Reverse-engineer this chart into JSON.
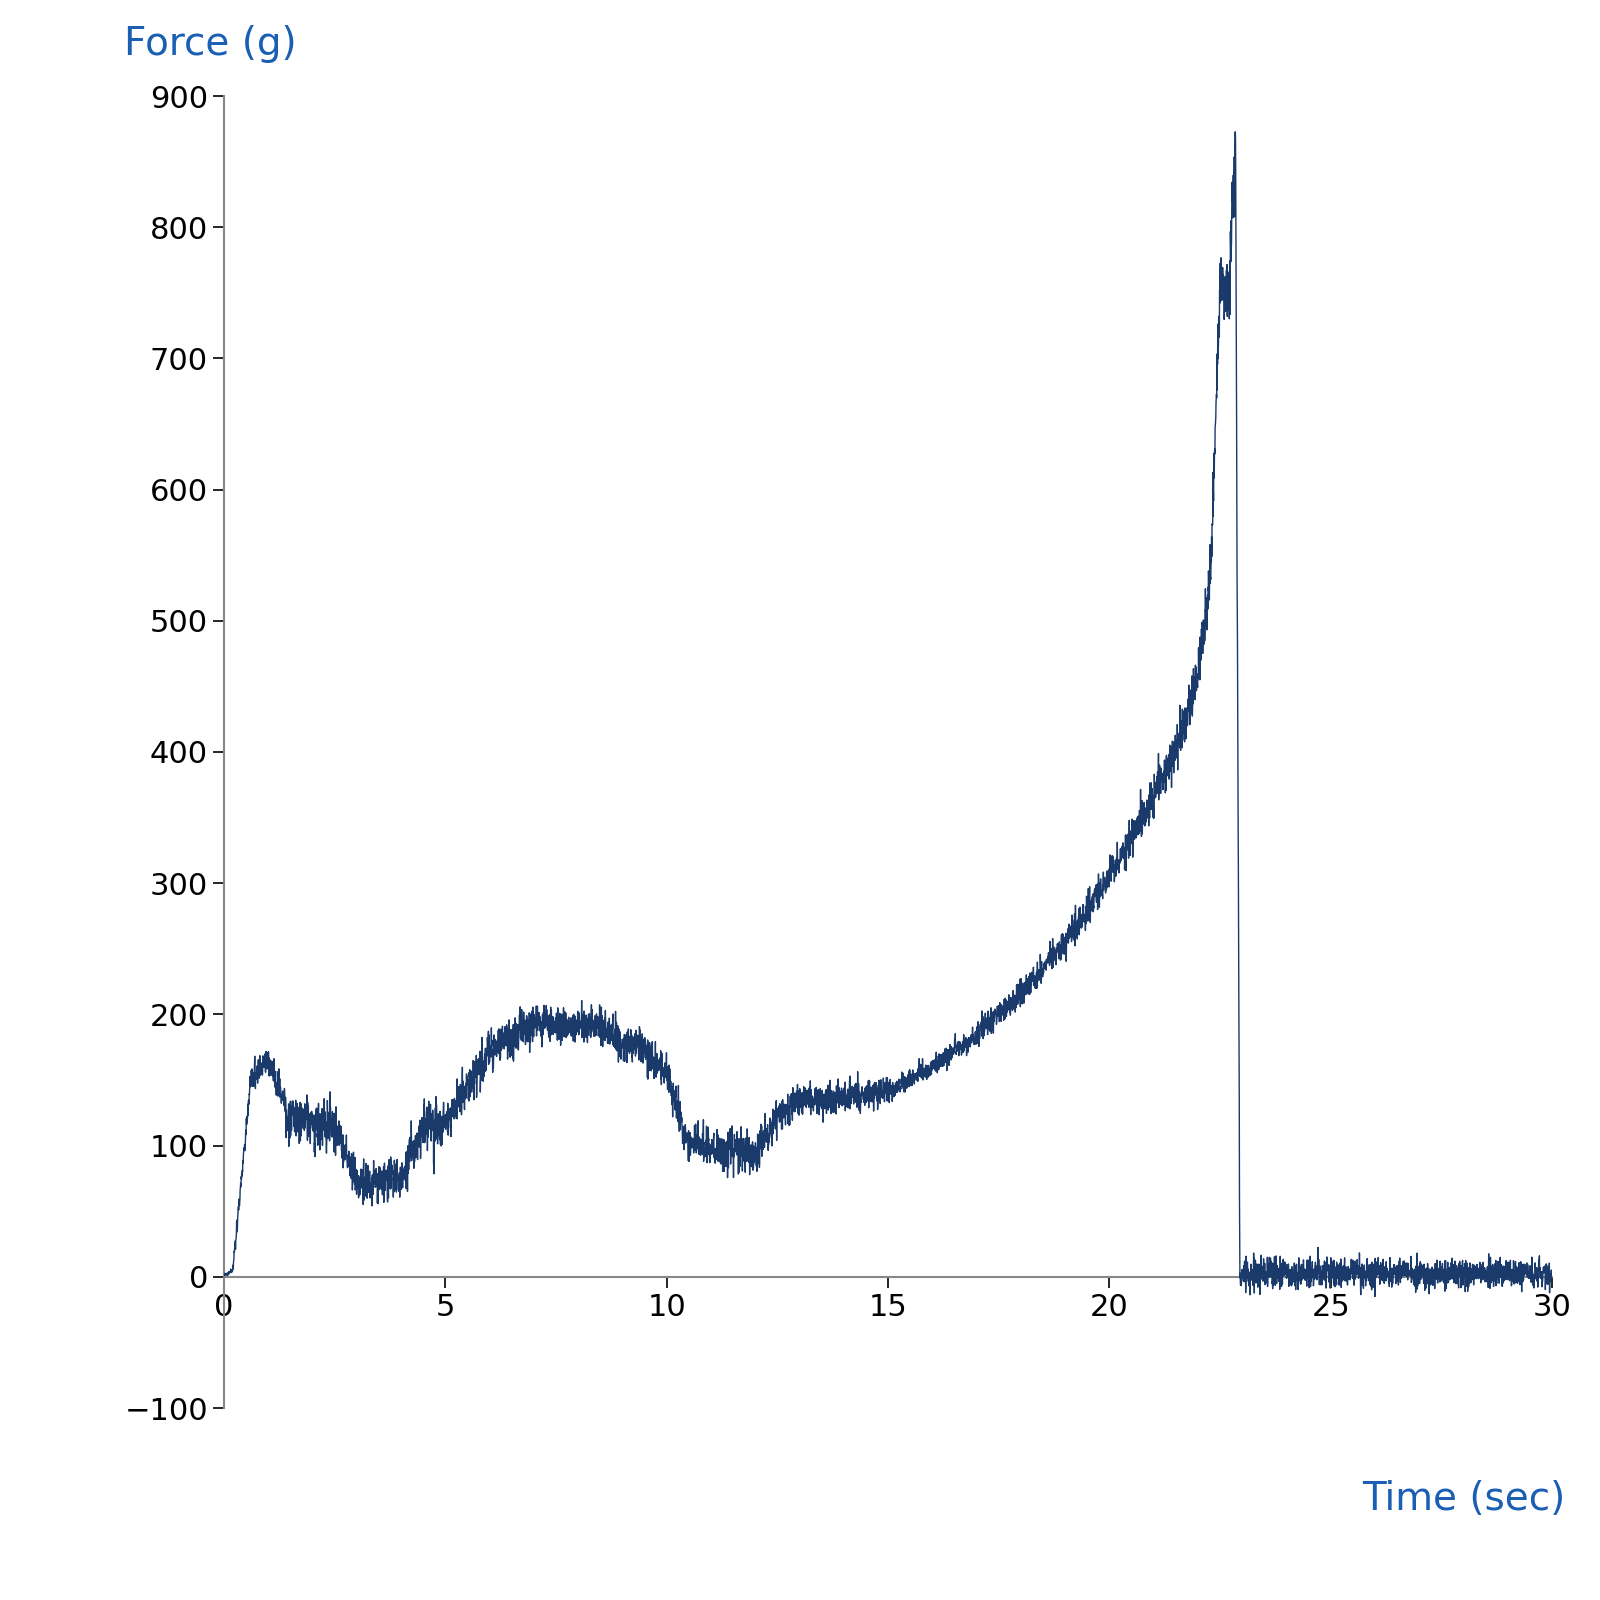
{
  "xlabel": "Time (sec)",
  "ylabel": "Force (g)",
  "xlabel_color": "#1a5fb4",
  "ylabel_color": "#1a5fb4",
  "line_color": "#1a3a6b",
  "xlim": [
    0,
    30
  ],
  "ylim": [
    -100,
    900
  ],
  "xticks": [
    0,
    5,
    10,
    15,
    20,
    25,
    30
  ],
  "yticks": [
    -100,
    0,
    100,
    200,
    300,
    400,
    500,
    600,
    700,
    800,
    900
  ],
  "xlabel_fontsize": 28,
  "ylabel_fontsize": 28,
  "tick_fontsize": 22,
  "line_width": 1.0,
  "background_color": "#ffffff",
  "axes_color": "#888888"
}
